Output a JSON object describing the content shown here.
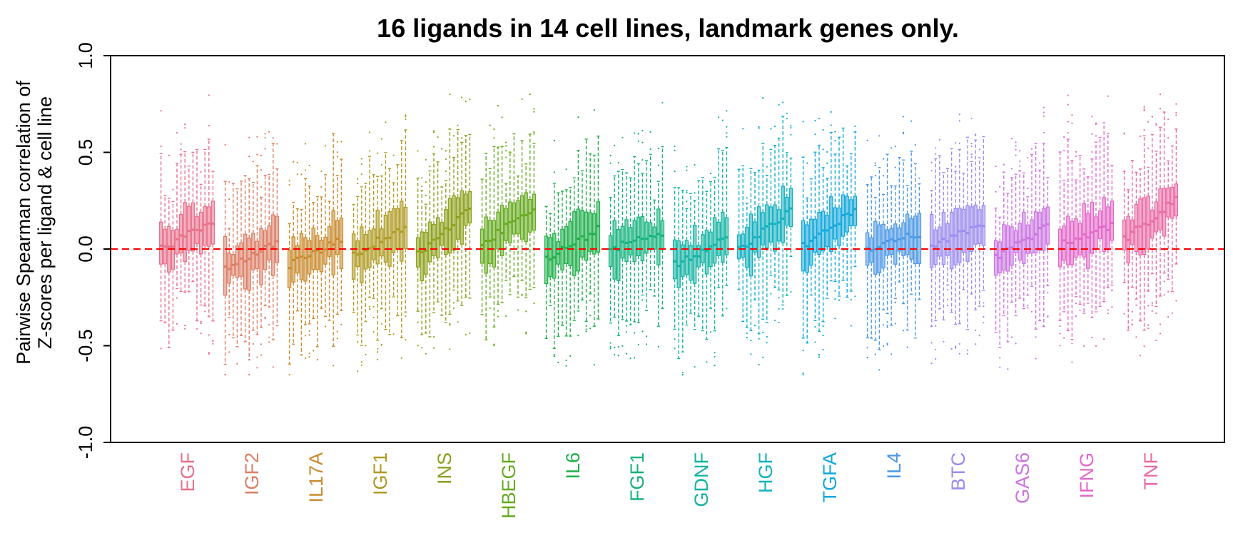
{
  "chart_data": {
    "type": "boxplot",
    "title": "16 ligands in 14 cell lines, landmark genes only.",
    "ylabel_lines": [
      "Pairwise Spearman correlation of",
      "Z-scores per ligand & cell line"
    ],
    "xlabel": "",
    "ylim": [
      -1.0,
      1.0
    ],
    "yticks": [
      "-1.0",
      "-0.5",
      "0.0",
      "0.5",
      "1.0"
    ],
    "reference_line": {
      "y": 0.0,
      "style": "dashed",
      "color": "#ff0000"
    },
    "boxes_per_group": 14,
    "groups": [
      {
        "ligand": "EGF",
        "color": "#E8708A",
        "median_range": [
          0.0,
          0.14
        ]
      },
      {
        "ligand": "IGF2",
        "color": "#DC7E66",
        "median_range": [
          -0.1,
          0.04
        ]
      },
      {
        "ligand": "IL17A",
        "color": "#C98A2E",
        "median_range": [
          -0.08,
          0.05
        ]
      },
      {
        "ligand": "IGF1",
        "color": "#AE9A22",
        "median_range": [
          -0.03,
          0.12
        ]
      },
      {
        "ligand": "INS",
        "color": "#8C9F1A",
        "median_range": [
          -0.03,
          0.2
        ]
      },
      {
        "ligand": "HBEGF",
        "color": "#66AA20",
        "median_range": [
          0.02,
          0.22
        ]
      },
      {
        "ligand": "IL6",
        "color": "#1FAF4A",
        "median_range": [
          -0.05,
          0.1
        ]
      },
      {
        "ligand": "FGF1",
        "color": "#14B27C",
        "median_range": [
          0.0,
          0.08
        ]
      },
      {
        "ligand": "GDNF",
        "color": "#12B3A2",
        "median_range": [
          -0.08,
          0.05
        ]
      },
      {
        "ligand": "HGF",
        "color": "#12B0C0",
        "median_range": [
          0.0,
          0.2
        ]
      },
      {
        "ligand": "TGFA",
        "color": "#12A8DA",
        "median_range": [
          0.02,
          0.2
        ]
      },
      {
        "ligand": "IL4",
        "color": "#4B97E6",
        "median_range": [
          0.0,
          0.08
        ]
      },
      {
        "ligand": "BTC",
        "color": "#9C8BEE",
        "median_range": [
          0.02,
          0.12
        ]
      },
      {
        "ligand": "GAS6",
        "color": "#CB74E2",
        "median_range": [
          -0.05,
          0.12
        ]
      },
      {
        "ligand": "IFNG",
        "color": "#E468C8",
        "median_range": [
          0.02,
          0.12
        ]
      },
      {
        "ligand": "TNF",
        "color": "#EA6AA4",
        "median_range": [
          0.05,
          0.25
        ]
      }
    ]
  }
}
